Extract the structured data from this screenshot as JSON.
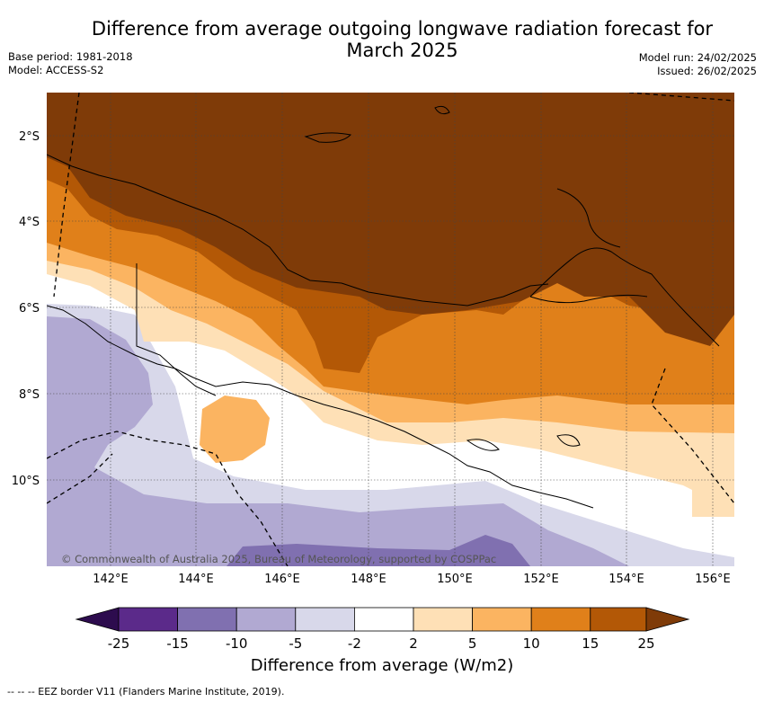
{
  "title": {
    "line1": "Difference from average outgoing longwave radiation forecast for",
    "line2": "March 2025"
  },
  "meta_left": {
    "base_period": "Base period: 1981-2018",
    "model": "Model: ACCESS-S2"
  },
  "meta_right": {
    "model_run": "Model run: 24/02/2025",
    "issued": "Issued: 26/02/2025"
  },
  "map": {
    "lon_labels": [
      "142°E",
      "144°E",
      "146°E",
      "148°E",
      "150°E",
      "152°E",
      "154°E",
      "156°E"
    ],
    "lat_labels": [
      "2°S",
      "4°S",
      "6°S",
      "8°S",
      "10°S"
    ],
    "copyright": "© Commonwealth of Australia 2025, Bureau of Meteorology, supported by COSPPac"
  },
  "colorbar": {
    "ticks": [
      "-25",
      "-15",
      "-10",
      "-5",
      "-2",
      "2",
      "5",
      "10",
      "15",
      "25"
    ],
    "colors": [
      "#2d0c4e",
      "#5b2a8a",
      "#8070b0",
      "#b1a9d2",
      "#d8d8ea",
      "#ffffff",
      "#fee0b6",
      "#fbb461",
      "#e0801a",
      "#b35806",
      "#7f3b08"
    ],
    "label": "Difference from average (W/m2)"
  },
  "footer": {
    "eez_legend": "--  --  -- EEZ border V11 (Flanders Marine Institute, 2019)."
  }
}
